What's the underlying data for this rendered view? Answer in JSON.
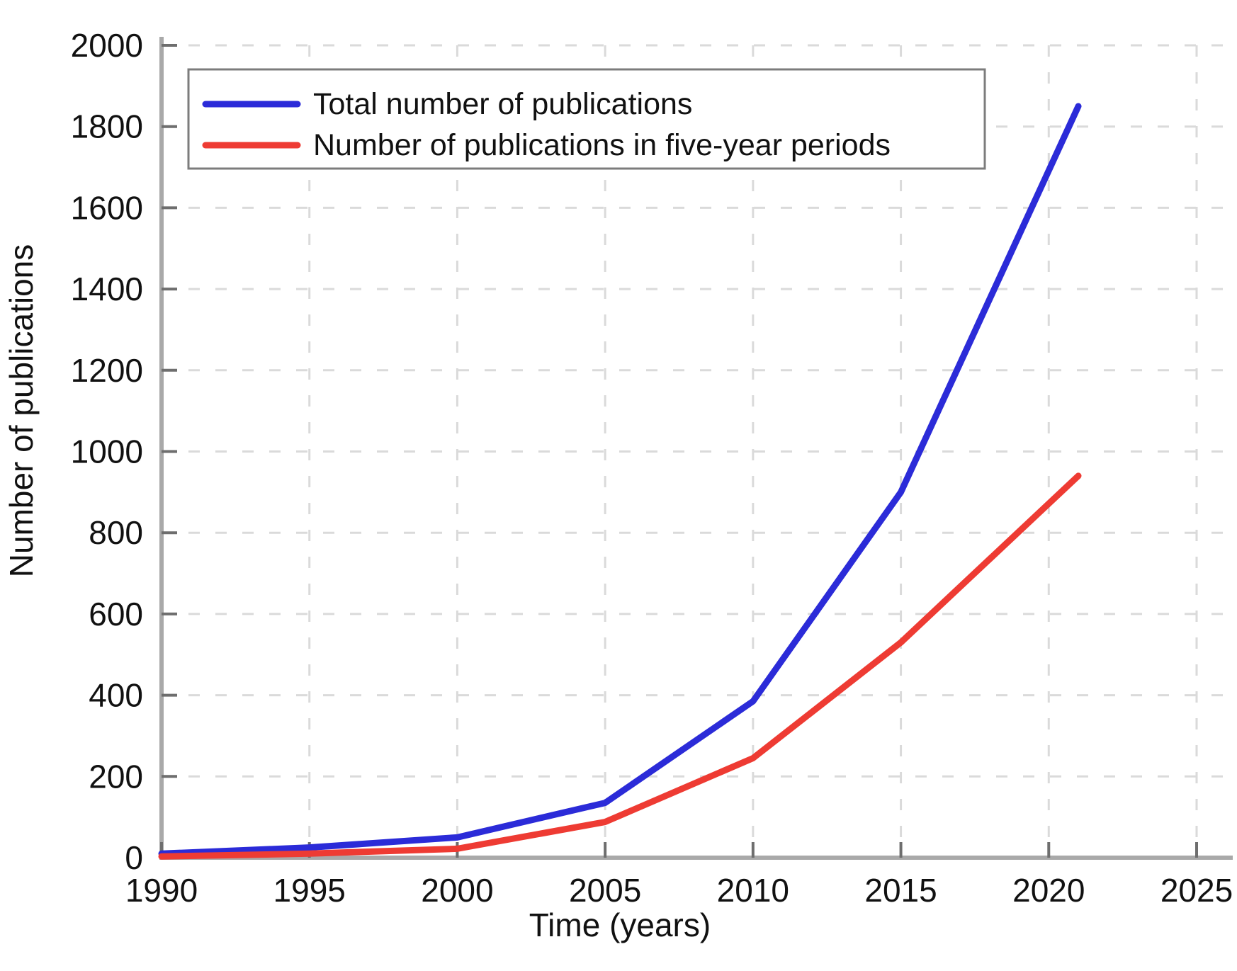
{
  "figure": {
    "xlabel": "Time (years)",
    "ylabel": "Number of publications"
  },
  "legend": {
    "items": [
      {
        "label": "Total number of publications",
        "color": "#2b2bd8"
      },
      {
        "label": "Number of publications in five-year periods",
        "color": "#ee3b33"
      }
    ]
  },
  "chart_data": {
    "type": "line",
    "title": "",
    "xlabel": "Time (years)",
    "ylabel": "Number of publications",
    "x": [
      1990,
      1995,
      2000,
      2005,
      2010,
      2015,
      2021
    ],
    "series": [
      {
        "name": "Total number of publications",
        "color": "#2b2bd8",
        "values": [
          10,
          25,
          50,
          135,
          385,
          900,
          1850
        ]
      },
      {
        "name": "Number of publications in five-year periods",
        "color": "#ee3b33",
        "values": [
          3,
          10,
          22,
          88,
          245,
          530,
          940
        ]
      }
    ],
    "xlim": [
      1990,
      2026.2
    ],
    "ylim": [
      0,
      2000
    ],
    "x_ticks": [
      1990,
      1995,
      2000,
      2005,
      2010,
      2015,
      2020,
      2025
    ],
    "y_ticks": [
      0,
      200,
      400,
      600,
      800,
      1000,
      1200,
      1400,
      1600,
      1800,
      2000
    ],
    "grid": true,
    "legend_position": "top-left",
    "colors": {
      "grid": "#dadada",
      "axis": "#a9a9a9",
      "tick": "#6e6e6e",
      "text": "#111111"
    }
  }
}
